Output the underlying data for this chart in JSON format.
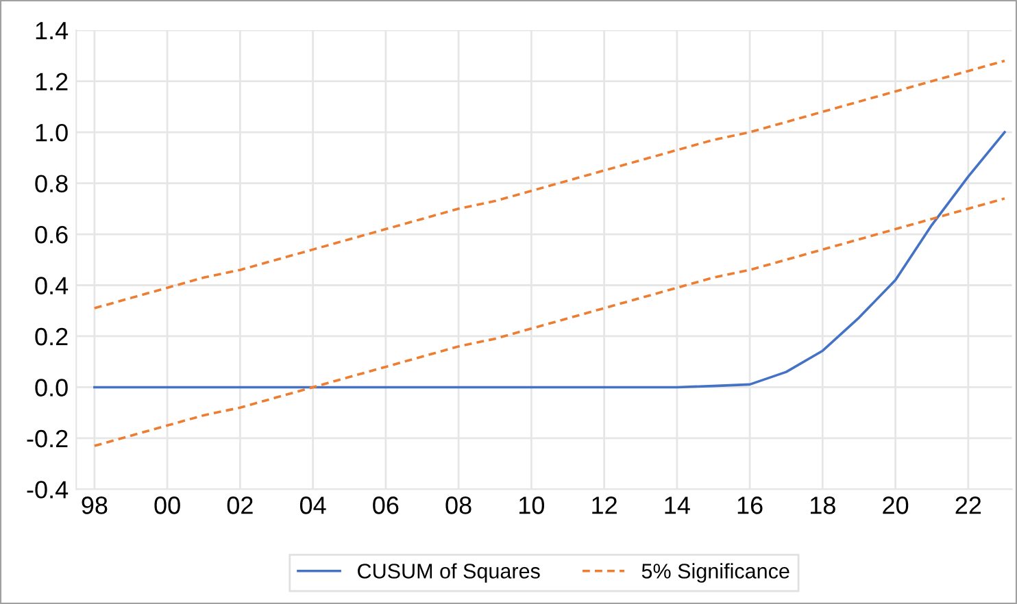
{
  "chart_data": {
    "type": "line",
    "x": [
      1998,
      1999,
      2000,
      2001,
      2002,
      2003,
      2004,
      2005,
      2006,
      2007,
      2008,
      2009,
      2010,
      2011,
      2012,
      2013,
      2014,
      2015,
      2016,
      2017,
      2018,
      2019,
      2020,
      2021,
      2022,
      2023
    ],
    "series": [
      {
        "name": "CUSUM of Squares",
        "color": "#4472c4",
        "line_style": "solid",
        "values": [
          0,
          0,
          0,
          0,
          0,
          0,
          0,
          0,
          0,
          0,
          0,
          0,
          0,
          0,
          0,
          0,
          0,
          0.005,
          0.011,
          0.06,
          0.143,
          0.273,
          0.42,
          0.636,
          0.826,
          1.0
        ]
      },
      {
        "name": "5% Significance",
        "color": "#ed7d31",
        "line_style": "dashed",
        "values": [
          0.31,
          0.35,
          0.39,
          0.43,
          0.46,
          0.5,
          0.54,
          0.58,
          0.62,
          0.66,
          0.7,
          0.73,
          0.77,
          0.81,
          0.85,
          0.89,
          0.93,
          0.97,
          1.0,
          1.04,
          1.08,
          1.12,
          1.16,
          1.2,
          1.24,
          1.28
        ]
      },
      {
        "color": "#ed7d31",
        "line_style": "dashed",
        "values": [
          -0.23,
          -0.19,
          -0.15,
          -0.11,
          -0.08,
          -0.04,
          0.0,
          0.04,
          0.08,
          0.12,
          0.16,
          0.19,
          0.23,
          0.27,
          0.31,
          0.35,
          0.39,
          0.43,
          0.46,
          0.5,
          0.54,
          0.58,
          0.62,
          0.66,
          0.7,
          0.74
        ]
      }
    ],
    "xlim": [
      1997.5,
      2023.2
    ],
    "xticks": [
      {
        "value": 1998,
        "label": "98"
      },
      {
        "value": 2000,
        "label": "00"
      },
      {
        "value": 2002,
        "label": "02"
      },
      {
        "value": 2004,
        "label": "04"
      },
      {
        "value": 2006,
        "label": "06"
      },
      {
        "value": 2008,
        "label": "08"
      },
      {
        "value": 2010,
        "label": "10"
      },
      {
        "value": 2012,
        "label": "12"
      },
      {
        "value": 2014,
        "label": "14"
      },
      {
        "value": 2016,
        "label": "16"
      },
      {
        "value": 2018,
        "label": "18"
      },
      {
        "value": 2020,
        "label": "20"
      },
      {
        "value": 2022,
        "label": "22"
      }
    ],
    "ylim": [
      -0.4,
      1.4
    ],
    "yticks": [
      {
        "value": -0.4,
        "label": "-0.4"
      },
      {
        "value": -0.2,
        "label": "-0.2"
      },
      {
        "value": 0.0,
        "label": "0.0"
      },
      {
        "value": 0.2,
        "label": "0.2"
      },
      {
        "value": 0.4,
        "label": "0.4"
      },
      {
        "value": 0.6,
        "label": "0.6"
      },
      {
        "value": 0.8,
        "label": "0.8"
      },
      {
        "value": 1.0,
        "label": "1.0"
      },
      {
        "value": 1.2,
        "label": "1.2"
      },
      {
        "value": 1.4,
        "label": "1.4"
      }
    ],
    "grid": true,
    "legend": "bottom",
    "marker": "none"
  }
}
